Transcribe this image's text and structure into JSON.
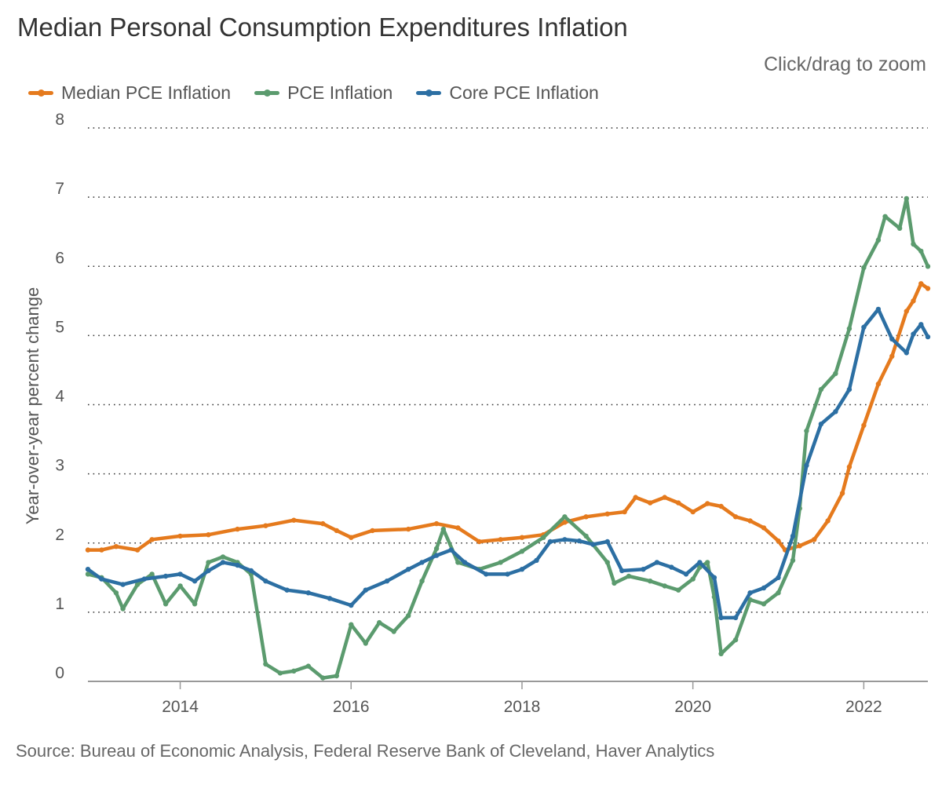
{
  "chart_data": {
    "type": "line",
    "title": "Median Personal Consumption Expenditures Inflation",
    "zoom_hint": "Click/drag to zoom",
    "ylabel": "Year-over-year percent change",
    "xlabel": "",
    "source": "Source: Bureau of Economic Analysis, Federal Reserve Bank of Cleveland, Haver Analytics",
    "ylim": [
      0,
      8
    ],
    "xlim": [
      2012.92,
      2022.75
    ],
    "yticks": [
      "0",
      "1",
      "2",
      "3",
      "4",
      "5",
      "6",
      "7",
      "8"
    ],
    "xticks": [
      "2014",
      "2016",
      "2018",
      "2020",
      "2022"
    ],
    "grid": "horizontal dotted",
    "legend_position": "top-left",
    "series": [
      {
        "name": "Median PCE Inflation",
        "color": "#e57a1d",
        "points": [
          [
            2012.92,
            1.9
          ],
          [
            2013.08,
            1.9
          ],
          [
            2013.25,
            1.95
          ],
          [
            2013.5,
            1.9
          ],
          [
            2013.67,
            2.05
          ],
          [
            2014.0,
            2.1
          ],
          [
            2014.33,
            2.12
          ],
          [
            2014.67,
            2.2
          ],
          [
            2015.0,
            2.25
          ],
          [
            2015.33,
            2.33
          ],
          [
            2015.67,
            2.28
          ],
          [
            2015.83,
            2.18
          ],
          [
            2016.0,
            2.08
          ],
          [
            2016.25,
            2.18
          ],
          [
            2016.67,
            2.2
          ],
          [
            2017.0,
            2.28
          ],
          [
            2017.25,
            2.22
          ],
          [
            2017.5,
            2.02
          ],
          [
            2017.75,
            2.05
          ],
          [
            2018.0,
            2.08
          ],
          [
            2018.25,
            2.12
          ],
          [
            2018.5,
            2.3
          ],
          [
            2018.75,
            2.38
          ],
          [
            2019.0,
            2.42
          ],
          [
            2019.2,
            2.45
          ],
          [
            2019.33,
            2.66
          ],
          [
            2019.5,
            2.58
          ],
          [
            2019.67,
            2.66
          ],
          [
            2019.83,
            2.58
          ],
          [
            2020.0,
            2.45
          ],
          [
            2020.17,
            2.57
          ],
          [
            2020.33,
            2.53
          ],
          [
            2020.5,
            2.38
          ],
          [
            2020.67,
            2.32
          ],
          [
            2020.83,
            2.22
          ],
          [
            2021.0,
            2.03
          ],
          [
            2021.08,
            1.9
          ],
          [
            2021.25,
            1.96
          ],
          [
            2021.42,
            2.05
          ],
          [
            2021.58,
            2.32
          ],
          [
            2021.75,
            2.72
          ],
          [
            2021.83,
            3.1
          ],
          [
            2022.0,
            3.7
          ],
          [
            2022.17,
            4.3
          ],
          [
            2022.33,
            4.7
          ],
          [
            2022.5,
            5.35
          ],
          [
            2022.58,
            5.5
          ],
          [
            2022.67,
            5.75
          ],
          [
            2022.75,
            5.68
          ]
        ]
      },
      {
        "name": "PCE Inflation",
        "color": "#5b9b6e",
        "points": [
          [
            2012.92,
            1.55
          ],
          [
            2013.08,
            1.5
          ],
          [
            2013.25,
            1.28
          ],
          [
            2013.33,
            1.05
          ],
          [
            2013.5,
            1.4
          ],
          [
            2013.67,
            1.55
          ],
          [
            2013.83,
            1.12
          ],
          [
            2014.0,
            1.38
          ],
          [
            2014.17,
            1.12
          ],
          [
            2014.33,
            1.72
          ],
          [
            2014.5,
            1.8
          ],
          [
            2014.67,
            1.72
          ],
          [
            2014.83,
            1.55
          ],
          [
            2015.0,
            0.25
          ],
          [
            2015.17,
            0.12
          ],
          [
            2015.33,
            0.15
          ],
          [
            2015.5,
            0.22
          ],
          [
            2015.67,
            0.05
          ],
          [
            2015.83,
            0.08
          ],
          [
            2016.0,
            0.82
          ],
          [
            2016.17,
            0.55
          ],
          [
            2016.33,
            0.85
          ],
          [
            2016.5,
            0.72
          ],
          [
            2016.67,
            0.95
          ],
          [
            2016.83,
            1.45
          ],
          [
            2017.0,
            1.92
          ],
          [
            2017.08,
            2.2
          ],
          [
            2017.25,
            1.72
          ],
          [
            2017.5,
            1.62
          ],
          [
            2017.75,
            1.72
          ],
          [
            2018.0,
            1.88
          ],
          [
            2018.25,
            2.08
          ],
          [
            2018.5,
            2.38
          ],
          [
            2018.75,
            2.1
          ],
          [
            2019.0,
            1.72
          ],
          [
            2019.08,
            1.42
          ],
          [
            2019.25,
            1.52
          ],
          [
            2019.5,
            1.45
          ],
          [
            2019.67,
            1.38
          ],
          [
            2019.83,
            1.32
          ],
          [
            2020.0,
            1.48
          ],
          [
            2020.08,
            1.65
          ],
          [
            2020.17,
            1.72
          ],
          [
            2020.25,
            1.22
          ],
          [
            2020.33,
            0.4
          ],
          [
            2020.5,
            0.6
          ],
          [
            2020.67,
            1.18
          ],
          [
            2020.83,
            1.12
          ],
          [
            2021.0,
            1.28
          ],
          [
            2021.17,
            1.75
          ],
          [
            2021.25,
            2.5
          ],
          [
            2021.33,
            3.62
          ],
          [
            2021.5,
            4.22
          ],
          [
            2021.67,
            4.45
          ],
          [
            2021.83,
            5.1
          ],
          [
            2022.0,
            5.98
          ],
          [
            2022.17,
            6.38
          ],
          [
            2022.25,
            6.72
          ],
          [
            2022.42,
            6.55
          ],
          [
            2022.5,
            6.98
          ],
          [
            2022.58,
            6.32
          ],
          [
            2022.67,
            6.22
          ],
          [
            2022.75,
            6.0
          ]
        ]
      },
      {
        "name": "Core PCE Inflation",
        "color": "#2c6fa3",
        "points": [
          [
            2012.92,
            1.62
          ],
          [
            2013.08,
            1.48
          ],
          [
            2013.33,
            1.4
          ],
          [
            2013.58,
            1.48
          ],
          [
            2013.83,
            1.52
          ],
          [
            2014.0,
            1.55
          ],
          [
            2014.17,
            1.45
          ],
          [
            2014.33,
            1.6
          ],
          [
            2014.5,
            1.72
          ],
          [
            2014.67,
            1.68
          ],
          [
            2014.83,
            1.6
          ],
          [
            2015.0,
            1.45
          ],
          [
            2015.25,
            1.32
          ],
          [
            2015.5,
            1.28
          ],
          [
            2015.75,
            1.2
          ],
          [
            2016.0,
            1.1
          ],
          [
            2016.17,
            1.32
          ],
          [
            2016.42,
            1.45
          ],
          [
            2016.67,
            1.62
          ],
          [
            2016.83,
            1.72
          ],
          [
            2017.0,
            1.82
          ],
          [
            2017.17,
            1.9
          ],
          [
            2017.33,
            1.72
          ],
          [
            2017.58,
            1.55
          ],
          [
            2017.83,
            1.55
          ],
          [
            2018.0,
            1.62
          ],
          [
            2018.17,
            1.75
          ],
          [
            2018.33,
            2.02
          ],
          [
            2018.5,
            2.05
          ],
          [
            2018.67,
            2.03
          ],
          [
            2018.83,
            1.98
          ],
          [
            2019.0,
            2.02
          ],
          [
            2019.17,
            1.6
          ],
          [
            2019.42,
            1.62
          ],
          [
            2019.58,
            1.72
          ],
          [
            2019.75,
            1.65
          ],
          [
            2019.92,
            1.55
          ],
          [
            2020.08,
            1.72
          ],
          [
            2020.25,
            1.5
          ],
          [
            2020.33,
            0.92
          ],
          [
            2020.5,
            0.92
          ],
          [
            2020.67,
            1.28
          ],
          [
            2020.83,
            1.35
          ],
          [
            2021.0,
            1.5
          ],
          [
            2021.17,
            2.1
          ],
          [
            2021.33,
            3.12
          ],
          [
            2021.5,
            3.72
          ],
          [
            2021.67,
            3.9
          ],
          [
            2021.83,
            4.22
          ],
          [
            2022.0,
            5.12
          ],
          [
            2022.17,
            5.38
          ],
          [
            2022.33,
            4.95
          ],
          [
            2022.5,
            4.75
          ],
          [
            2022.58,
            5.02
          ],
          [
            2022.67,
            5.16
          ],
          [
            2022.75,
            4.98
          ]
        ]
      }
    ]
  }
}
